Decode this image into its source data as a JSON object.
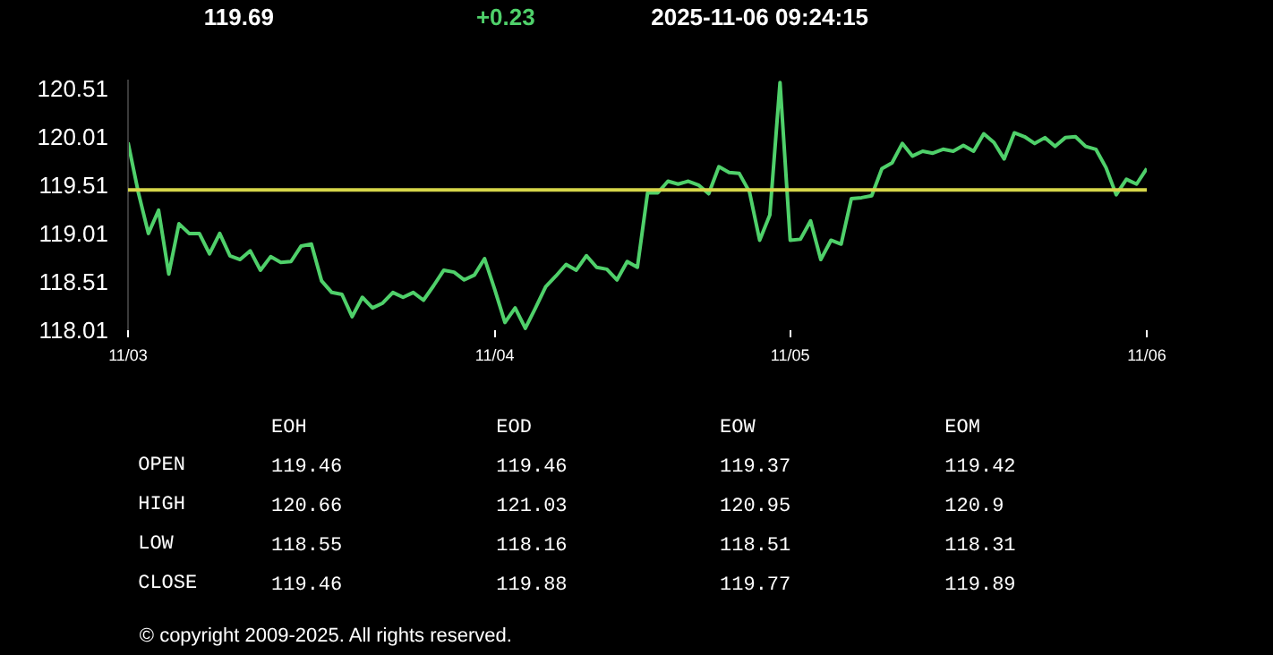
{
  "chart_data": [
    {
      "type": "line",
      "annotations": [
        "119.69",
        "+0.23",
        "2025-11-06 09:24:15"
      ],
      "categories": [
        "11/03",
        null,
        null,
        null,
        null,
        null,
        null,
        null,
        null,
        null,
        null,
        null,
        null,
        null,
        null,
        null,
        null,
        null,
        null,
        null,
        null,
        null,
        null,
        null,
        null,
        null,
        null,
        null,
        null,
        null,
        null,
        null,
        null,
        null,
        null,
        null,
        "11/04",
        null,
        null,
        null,
        null,
        null,
        null,
        null,
        null,
        null,
        null,
        null,
        null,
        null,
        null,
        null,
        null,
        null,
        null,
        null,
        null,
        null,
        null,
        null,
        null,
        null,
        null,
        null,
        null,
        "11/05",
        null,
        null,
        null,
        null,
        null,
        null,
        null,
        null,
        null,
        null,
        null,
        null,
        null,
        null,
        null,
        null,
        null,
        null,
        null,
        null,
        null,
        null,
        null,
        null,
        null,
        null,
        null,
        null,
        null,
        null,
        null,
        null,
        null,
        null,
        "11/06"
      ],
      "series": [
        {
          "color": "#4fd06a",
          "values": [
            119.95,
            119.44,
            119.01,
            119.25,
            118.59,
            119.11,
            119.01,
            119.01,
            118.8,
            119.01,
            118.78,
            118.74,
            118.83,
            118.63,
            118.77,
            118.71,
            118.72,
            118.88,
            118.9,
            118.52,
            118.4,
            118.38,
            118.15,
            118.35,
            118.24,
            118.29,
            118.4,
            118.35,
            118.4,
            118.32,
            118.47,
            118.63,
            118.61,
            118.53,
            118.58,
            118.75,
            118.43,
            118.09,
            118.24,
            118.03,
            118.24,
            118.46,
            118.57,
            118.69,
            118.63,
            118.78,
            118.66,
            118.64,
            118.53,
            118.72,
            118.66,
            119.43,
            119.43,
            119.55,
            119.52,
            119.55,
            119.51,
            119.42,
            119.7,
            119.64,
            119.63,
            119.44,
            118.94,
            119.2,
            120.57,
            118.94,
            118.95,
            119.14,
            118.74,
            118.94,
            118.9,
            119.37,
            119.38,
            119.4,
            119.68,
            119.74,
            119.94,
            119.81,
            119.86,
            119.84,
            119.88,
            119.86,
            119.92,
            119.86,
            120.04,
            119.95,
            119.78,
            120.05,
            120.01,
            119.94,
            120.0,
            119.91,
            120.0,
            120.01,
            119.91,
            119.88,
            119.69,
            119.41,
            119.57,
            119.52,
            119.68
          ]
        }
      ],
      "ylim": [
        118.01,
        120.6
      ],
      "yticks": [
        118.01,
        118.51,
        119.01,
        119.51,
        120.01,
        120.51
      ],
      "ref_lines": [
        {
          "axis": "y",
          "value": 119.46,
          "label": null,
          "color": "#d6d64a"
        }
      ],
      "grid": false
    },
    {
      "type": "heatmap",
      "data_labels": true,
      "categories": [
        "EOH",
        "EOD",
        "EOW",
        "EOM"
      ],
      "y_categories": [
        "OPEN",
        "HIGH",
        "LOW",
        "CLOSE"
      ],
      "cells": [
        [
          119.46,
          119.46,
          119.37,
          119.42
        ],
        [
          120.66,
          121.03,
          120.95,
          120.9
        ],
        [
          118.55,
          118.16,
          118.51,
          118.31
        ],
        [
          119.46,
          119.88,
          119.77,
          119.89
        ]
      ],
      "annotations": [
        "© copyright 2009-2025. All rights reserved."
      ]
    }
  ]
}
